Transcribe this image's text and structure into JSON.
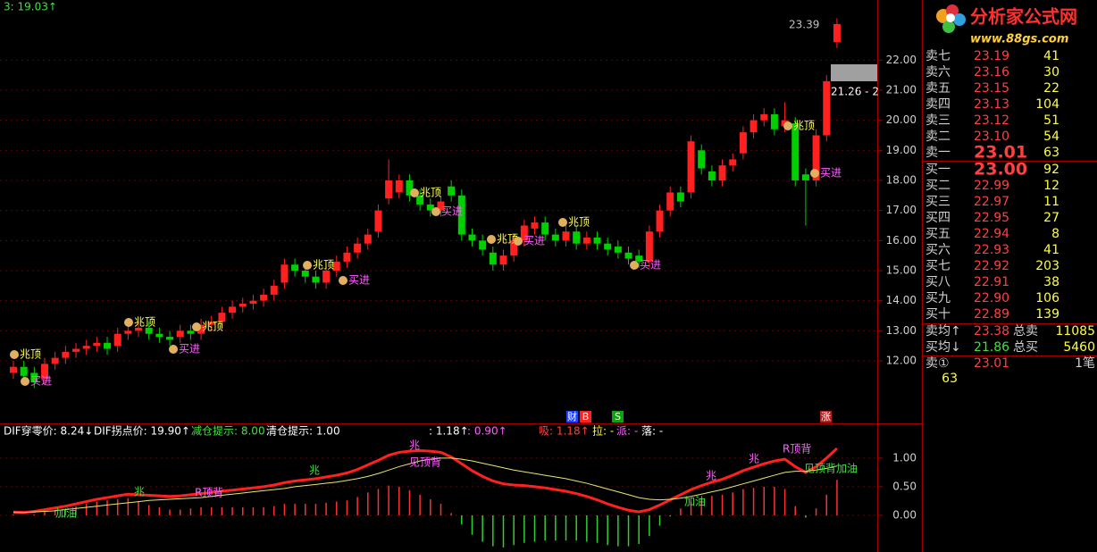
{
  "chart_data": [
    {
      "type": "candlestick",
      "title": "3: 19.03↑",
      "up_color": "#ff2020",
      "down_color": "#00d000",
      "grid": true,
      "ylim": [
        9.95,
        24.0
      ],
      "yticks": [
        {
          "value": 12,
          "label": "12.00"
        },
        {
          "value": 13,
          "label": "13.00"
        },
        {
          "value": 14,
          "label": "14.00"
        },
        {
          "value": 15,
          "label": "15.00"
        },
        {
          "value": 16,
          "label": "16.00"
        },
        {
          "value": 17,
          "label": "17.00"
        },
        {
          "value": 18,
          "label": "18.00"
        },
        {
          "value": 19,
          "label": "19.00"
        },
        {
          "value": 20,
          "label": "20.00"
        },
        {
          "value": 21,
          "label": "21.00"
        },
        {
          "value": 22,
          "label": "22.00"
        }
      ],
      "open": [
        11.6,
        11.8,
        11.6,
        11.4,
        11.9,
        12.1,
        12.3,
        12.4,
        12.5,
        12.6,
        12.5,
        12.9,
        13.0,
        13.1,
        12.9,
        12.8,
        12.8,
        13.0,
        12.9,
        13.2,
        13.3,
        13.6,
        13.8,
        13.9,
        14.0,
        14.2,
        14.6,
        15.2,
        15.0,
        14.8,
        14.6,
        15.0,
        15.3,
        15.6,
        15.9,
        16.3,
        17.4,
        17.6,
        18.0,
        17.5,
        17.2,
        17.0,
        17.8,
        17.5,
        16.2,
        16.0,
        15.6,
        15.2,
        15.5,
        16.0,
        16.4,
        16.6,
        16.2,
        16.0,
        16.3,
        15.9,
        16.1,
        15.9,
        15.8,
        15.6,
        15.5,
        15.3,
        16.3,
        17.0,
        17.6,
        17.6,
        19.0,
        18.3,
        18.0,
        18.5,
        18.9,
        19.6,
        20.0,
        20.2,
        19.8,
        19.9,
        18.2,
        18.0,
        19.5,
        22.6
      ],
      "high": [
        12.0,
        12.0,
        11.8,
        12.1,
        12.3,
        12.5,
        12.6,
        12.7,
        12.8,
        12.8,
        13.1,
        13.2,
        13.3,
        13.3,
        13.1,
        13.0,
        13.2,
        13.2,
        13.4,
        13.5,
        13.8,
        14.0,
        14.1,
        14.2,
        14.4,
        14.7,
        15.4,
        15.4,
        15.2,
        15.0,
        15.2,
        15.5,
        15.8,
        16.1,
        16.4,
        17.2,
        18.7,
        18.2,
        18.2,
        17.7,
        17.4,
        17.5,
        18.0,
        17.7,
        16.4,
        16.2,
        15.8,
        15.7,
        16.2,
        16.7,
        16.8,
        16.8,
        16.4,
        16.5,
        16.5,
        16.3,
        16.3,
        16.1,
        16.0,
        15.8,
        15.7,
        16.5,
        17.2,
        17.8,
        17.8,
        19.5,
        19.2,
        18.5,
        18.7,
        18.9,
        19.8,
        20.2,
        20.4,
        20.4,
        20.6,
        20.1,
        18.4,
        19.7,
        21.5,
        23.39
      ],
      "low": [
        11.4,
        11.3,
        11.1,
        11.2,
        11.7,
        11.9,
        12.1,
        12.2,
        12.3,
        12.2,
        12.3,
        12.7,
        12.8,
        12.7,
        12.6,
        12.5,
        12.6,
        12.7,
        12.7,
        13.0,
        13.1,
        13.4,
        13.6,
        13.7,
        13.8,
        14.0,
        14.4,
        14.8,
        14.6,
        14.4,
        14.4,
        14.8,
        15.1,
        15.4,
        15.7,
        16.1,
        17.2,
        17.4,
        17.3,
        17.0,
        16.8,
        16.8,
        17.3,
        16.0,
        15.8,
        15.5,
        15.0,
        15.0,
        15.3,
        15.8,
        16.2,
        16.0,
        15.8,
        15.8,
        15.7,
        15.7,
        15.7,
        15.5,
        15.4,
        15.2,
        15.1,
        15.1,
        16.1,
        16.8,
        17.1,
        17.4,
        18.2,
        17.8,
        17.8,
        18.3,
        18.7,
        19.4,
        19.8,
        19.5,
        19.6,
        17.8,
        16.5,
        17.8,
        19.3,
        22.4
      ],
      "close": [
        11.8,
        11.5,
        11.3,
        11.9,
        12.1,
        12.3,
        12.4,
        12.5,
        12.6,
        12.4,
        12.9,
        13.0,
        13.1,
        12.9,
        12.8,
        12.7,
        13.0,
        12.9,
        13.2,
        13.3,
        13.6,
        13.8,
        13.9,
        14.0,
        14.2,
        14.5,
        15.2,
        15.0,
        14.8,
        14.6,
        15.0,
        15.3,
        15.6,
        15.9,
        16.2,
        17.0,
        18.0,
        18.0,
        17.5,
        17.2,
        17.0,
        17.3,
        17.5,
        16.2,
        16.0,
        15.7,
        15.2,
        15.5,
        16.0,
        16.5,
        16.6,
        16.2,
        16.0,
        16.3,
        15.9,
        16.1,
        15.9,
        15.7,
        15.6,
        15.4,
        15.3,
        16.3,
        17.0,
        17.6,
        17.3,
        19.3,
        18.4,
        18.0,
        18.5,
        18.7,
        19.6,
        20.0,
        20.2,
        19.7,
        20.0,
        18.0,
        18.0,
        19.5,
        21.3,
        23.2
      ],
      "annotations": [
        "兆顶",
        "买进",
        "兆顶",
        "买进",
        "兆顶",
        "兆顶",
        "买进",
        "兆顶",
        "买进",
        "兆顶",
        "买进",
        "兆顶",
        "买进",
        "兆顶",
        "买进"
      ],
      "high_label": "23.39",
      "cursor_label": "21.26 - 2"
    },
    {
      "type": "macd",
      "grid": true,
      "ylim": [
        -0.64,
        1.59
      ],
      "yticks": [
        {
          "value": 0,
          "label": "0.00"
        },
        {
          "value": 0.5,
          "label": "0.50"
        },
        {
          "value": 1,
          "label": "1.00"
        }
      ],
      "header": [
        "DIF穿零价: 8.24↓",
        "DIF拐点价: 19.90↑",
        "减仓提示: 8.00",
        "清仓提示: 1.00",
        ": 1.18↑",
        ": 0.90↑",
        "吸: 1.18↑",
        "拉: -",
        "派: -",
        "落: -"
      ],
      "markers": [
        "财",
        "B",
        "S",
        "涨"
      ],
      "annotations": [
        "加油",
        "兆",
        "兆",
        "兆",
        "R顶背",
        "见顶背",
        "加油",
        "兆",
        "兆",
        "R顶背",
        "见顶背加油"
      ],
      "histogram": [
        0.02,
        0,
        0.02,
        0.06,
        0.1,
        0.12,
        0.16,
        0.2,
        0.24,
        0.26,
        0.28,
        0.3,
        0.24,
        0.18,
        0.14,
        0.1,
        0.1,
        0.12,
        0.14,
        0.14,
        0.14,
        0.14,
        0.14,
        0.14,
        0.14,
        0.16,
        0.2,
        0.2,
        0.2,
        0.2,
        0.22,
        0.24,
        0.26,
        0.32,
        0.4,
        0.46,
        0.52,
        0.5,
        0.44,
        0.36,
        0.28,
        0.2,
        0.04,
        -0.16,
        -0.34,
        -0.46,
        -0.54,
        -0.56,
        -0.52,
        -0.48,
        -0.46,
        -0.44,
        -0.44,
        -0.44,
        -0.44,
        -0.46,
        -0.48,
        -0.52,
        -0.54,
        -0.54,
        -0.5,
        -0.36,
        -0.18,
        -0.02,
        0.12,
        0.24,
        0.3,
        0.34,
        0.36,
        0.4,
        0.46,
        0.48,
        0.5,
        0.5,
        0.46,
        0.16,
        -0.04,
        0.12,
        0.36,
        0.62
      ],
      "series": [
        {
          "name": "DIF",
          "color": "#ff2020",
          "values": [
            0.06,
            0.05,
            0.07,
            0.1,
            0.13,
            0.16,
            0.2,
            0.24,
            0.28,
            0.31,
            0.34,
            0.37,
            0.36,
            0.35,
            0.34,
            0.33,
            0.34,
            0.36,
            0.38,
            0.4,
            0.42,
            0.44,
            0.46,
            0.48,
            0.5,
            0.53,
            0.57,
            0.6,
            0.62,
            0.64,
            0.67,
            0.7,
            0.74,
            0.8,
            0.88,
            0.96,
            1.05,
            1.1,
            1.12,
            1.13,
            1.12,
            1.1,
            1.02,
            0.9,
            0.78,
            0.68,
            0.6,
            0.55,
            0.53,
            0.52,
            0.5,
            0.48,
            0.45,
            0.42,
            0.38,
            0.33,
            0.27,
            0.2,
            0.14,
            0.09,
            0.06,
            0.1,
            0.18,
            0.27,
            0.36,
            0.45,
            0.52,
            0.58,
            0.63,
            0.7,
            0.78,
            0.84,
            0.9,
            0.95,
            0.98,
            0.85,
            0.75,
            0.85,
            1.0,
            1.17
          ]
        },
        {
          "name": "DEA",
          "color": "#e8e870",
          "values": [
            0.05,
            0.05,
            0.06,
            0.07,
            0.08,
            0.1,
            0.12,
            0.14,
            0.16,
            0.18,
            0.2,
            0.22,
            0.24,
            0.26,
            0.27,
            0.28,
            0.29,
            0.3,
            0.31,
            0.33,
            0.35,
            0.37,
            0.39,
            0.41,
            0.43,
            0.45,
            0.47,
            0.5,
            0.52,
            0.54,
            0.56,
            0.58,
            0.61,
            0.64,
            0.68,
            0.73,
            0.79,
            0.85,
            0.9,
            0.95,
            0.98,
            1.0,
            1.0,
            0.98,
            0.95,
            0.91,
            0.87,
            0.83,
            0.79,
            0.76,
            0.73,
            0.7,
            0.67,
            0.64,
            0.6,
            0.56,
            0.51,
            0.46,
            0.41,
            0.36,
            0.31,
            0.28,
            0.27,
            0.28,
            0.3,
            0.33,
            0.37,
            0.41,
            0.45,
            0.5,
            0.55,
            0.6,
            0.65,
            0.7,
            0.75,
            0.77,
            0.77,
            0.79,
            0.82,
            0.86
          ]
        }
      ]
    }
  ],
  "logo": {
    "title": "分析家公式网",
    "url": "www.88gs.com"
  },
  "order_book": {
    "asks": [
      [
        "卖七",
        "23.19",
        "41"
      ],
      [
        "卖六",
        "23.16",
        "30"
      ],
      [
        "卖五",
        "23.15",
        "22"
      ],
      [
        "卖四",
        "23.13",
        "104"
      ],
      [
        "卖三",
        "23.12",
        "51"
      ],
      [
        "卖二",
        "23.10",
        "54"
      ],
      [
        "卖一",
        "23.01",
        "63"
      ]
    ],
    "bids": [
      [
        "买一",
        "23.00",
        "92"
      ],
      [
        "买二",
        "22.99",
        "12"
      ],
      [
        "买三",
        "22.97",
        "11"
      ],
      [
        "买四",
        "22.95",
        "27"
      ],
      [
        "买五",
        "22.94",
        "8"
      ],
      [
        "买六",
        "22.93",
        "41"
      ],
      [
        "买七",
        "22.92",
        "203"
      ],
      [
        "买八",
        "22.91",
        "38"
      ],
      [
        "买九",
        "22.90",
        "106"
      ],
      [
        "买十",
        "22.89",
        "139"
      ]
    ],
    "summary": [
      [
        "卖均↑",
        "23.38",
        "总卖",
        "11085"
      ],
      [
        "买均↓",
        "21.86",
        "总买",
        "5460"
      ]
    ],
    "last": [
      "卖①",
      "23.01",
      "1笔",
      "63"
    ]
  }
}
